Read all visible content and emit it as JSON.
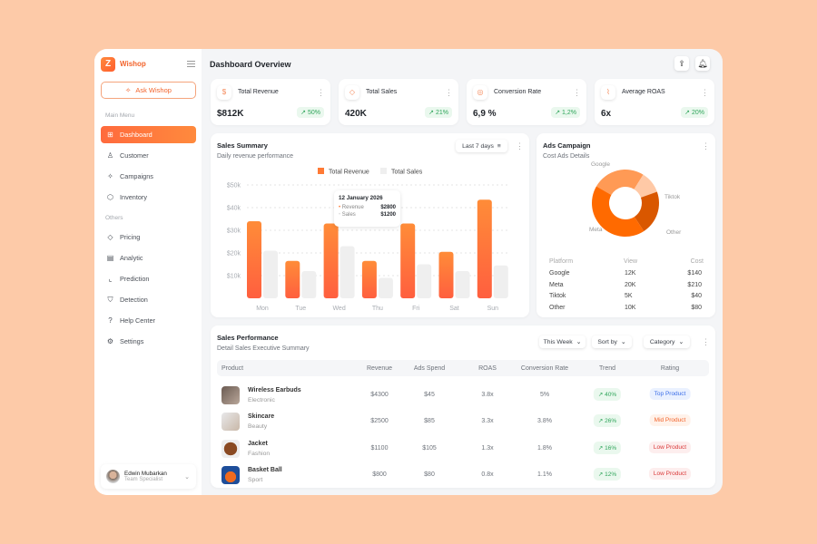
{
  "sidebar": {
    "brand": "Wishop",
    "ask_label": "Ask Wishop",
    "main_menu_label": "Main Menu",
    "others_label": "Others",
    "main_items": [
      {
        "label": "Dashboard",
        "icon": "grid-icon"
      },
      {
        "label": "Customer",
        "icon": "user-icon"
      },
      {
        "label": "Campaigns",
        "icon": "sparkle-icon"
      },
      {
        "label": "Inventory",
        "icon": "box-icon"
      }
    ],
    "other_items": [
      {
        "label": "Pricing",
        "icon": "tag-icon"
      },
      {
        "label": "Analytic",
        "icon": "analytic-icon"
      },
      {
        "label": "Prediction",
        "icon": "chart-icon"
      },
      {
        "label": "Detection",
        "icon": "shield-icon"
      },
      {
        "label": "Help Center",
        "icon": "help-icon"
      },
      {
        "label": "Settings",
        "icon": "gear-icon"
      }
    ],
    "user": {
      "name": "Edwin Mubarkan",
      "role": "Team Specialist"
    }
  },
  "header": {
    "title": "Dashboard Overview"
  },
  "stats": [
    {
      "label": "Total Revenue",
      "value": "$812K",
      "change": "50%",
      "icon": "dollar-icon"
    },
    {
      "label": "Total Sales",
      "value": "420K",
      "change": "21%",
      "icon": "tag-icon"
    },
    {
      "label": "Conversion Rate",
      "value": "6,9 %",
      "change": "1,2%",
      "icon": "target-icon"
    },
    {
      "label": "Average ROAS",
      "value": "6x",
      "change": "20%",
      "icon": "line-chart-icon"
    }
  ],
  "sales_summary": {
    "title": "Sales Summary",
    "subtitle": "Daily revenue performance",
    "filter": "Last 7 days",
    "tooltip": {
      "date": "12 January 2026",
      "revenue_label": "Revenue",
      "revenue": "$2800",
      "sales_label": "Sales",
      "sales": "$1200"
    }
  },
  "chart_data": {
    "type": "bar",
    "categories": [
      "Mon",
      "Tue",
      "Wed",
      "Thu",
      "Fri",
      "Sat",
      "Sun"
    ],
    "series": [
      {
        "name": "Total Revenue",
        "values": [
          34000,
          16500,
          33000,
          16500,
          33000,
          20500,
          43500
        ],
        "color": "#ff7a35"
      },
      {
        "name": "Total Sales",
        "values": [
          21000,
          12000,
          23000,
          9000,
          15000,
          12000,
          14500
        ],
        "color": "#efefef"
      }
    ],
    "yticks": [
      "$10k",
      "$20k",
      "$30k",
      "$40k",
      "$50k"
    ],
    "ylim": [
      0,
      50000
    ],
    "grid": true,
    "legend": "top"
  },
  "ads": {
    "title": "Ads Campaign",
    "subtitle": "Cost Ads Details",
    "headers": [
      "Platform",
      "View",
      "Cost"
    ],
    "rows": [
      {
        "platform": "Google",
        "view": "12K",
        "cost": "$140",
        "color": "#ff9a55"
      },
      {
        "platform": "Tiktok",
        "view": "5K",
        "cost": "$40",
        "color": "#ffc9a6"
      },
      {
        "platform": "Other",
        "view": "10K",
        "cost": "$80",
        "color": "#d95700"
      },
      {
        "platform": "Meta",
        "view": "20K",
        "cost": "$210",
        "color": "#ff6a00"
      }
    ]
  },
  "performance": {
    "title": "Sales Performance",
    "subtitle": "Detail Sales Executive Summary",
    "filters": [
      "This Week",
      "Sort by",
      "Category"
    ],
    "headers": [
      "Product",
      "Revenue",
      "Ads Spend",
      "ROAS",
      "Conversion Rate",
      "Trend",
      "Rating"
    ],
    "rows": [
      {
        "name": "Wireless Earbuds",
        "category": "Electronic",
        "revenue": "$4300",
        "ads": "$45",
        "roas": "3.8x",
        "conv": "5%",
        "trend": "40%",
        "rating": "Top Product",
        "rating_color": "#3b6ee8",
        "rating_bg": "#eaf1ff"
      },
      {
        "name": "Skincare",
        "category": "Beauty",
        "revenue": "$2500",
        "ads": "$85",
        "roas": "3.3x",
        "conv": "3.8%",
        "trend": "26%",
        "rating": "Mid Product",
        "rating_color": "#f2642c",
        "rating_bg": "#fff2ea"
      },
      {
        "name": "Jacket",
        "category": "Fashion",
        "revenue": "$1100",
        "ads": "$105",
        "roas": "1.3x",
        "conv": "1.8%",
        "trend": "16%",
        "rating": "Low Product",
        "rating_color": "#d93838",
        "rating_bg": "#fdeeee"
      },
      {
        "name": "Basket Ball",
        "category": "Sport",
        "revenue": "$800",
        "ads": "$80",
        "roas": "0.8x",
        "conv": "1.1%",
        "trend": "12%",
        "rating": "Low Product",
        "rating_color": "#d93838",
        "rating_bg": "#fdeeee"
      }
    ]
  }
}
